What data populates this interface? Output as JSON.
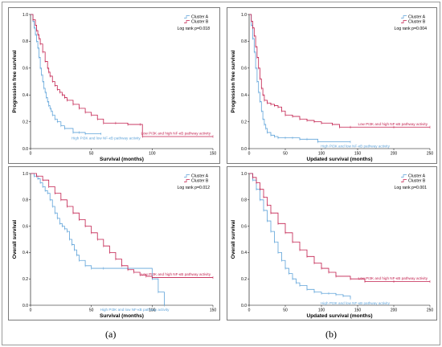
{
  "figure": {
    "label_a": "(a)",
    "label_b": "(b)"
  },
  "colors": {
    "cluster_a": "#5fa3d9",
    "cluster_b": "#c21f4d",
    "axis": "#000000",
    "panel_border": "#7a7a7a"
  },
  "chart_data": [
    {
      "type": "line",
      "panel": "top-left",
      "xlabel": "Survival (months)",
      "ylabel": "Progression free survival",
      "xlim": [
        0,
        150
      ],
      "ylim": [
        0,
        1
      ],
      "xticks": [
        "0",
        "50",
        "100",
        "150"
      ],
      "yticks": [
        "0.0",
        "0.2",
        "0.4",
        "0.6",
        "0.8",
        "1.0"
      ],
      "legend": [
        "Cluster A",
        "Cluster B"
      ],
      "legend_position": "top-right",
      "stat": "Log rank p=0.018",
      "annotations": {
        "cluster_b": "Low PI3K and high NF-κB pathway activity",
        "cluster_a": "High PI3K and low NF-κB pathway activity"
      },
      "series": [
        {
          "name": "Cluster A",
          "x": [
            0,
            2,
            3,
            4,
            5,
            6,
            7,
            8,
            9,
            10,
            11,
            12,
            13,
            14,
            15,
            16,
            17,
            18,
            20,
            22,
            25,
            28,
            35,
            40,
            45,
            58
          ],
          "y": [
            1.0,
            0.95,
            0.9,
            0.85,
            0.8,
            0.75,
            0.68,
            0.6,
            0.55,
            0.5,
            0.45,
            0.42,
            0.38,
            0.35,
            0.32,
            0.3,
            0.28,
            0.25,
            0.22,
            0.2,
            0.17,
            0.15,
            0.12,
            0.12,
            0.11,
            0.11
          ]
        },
        {
          "name": "Cluster B",
          "x": [
            0,
            2,
            4,
            5,
            6,
            7,
            8,
            10,
            12,
            14,
            15,
            16,
            18,
            20,
            22,
            24,
            26,
            28,
            30,
            35,
            40,
            45,
            50,
            55,
            60,
            70,
            80,
            90,
            92,
            150
          ],
          "y": [
            1.0,
            0.96,
            0.92,
            0.88,
            0.85,
            0.82,
            0.78,
            0.72,
            0.65,
            0.6,
            0.57,
            0.54,
            0.5,
            0.47,
            0.44,
            0.42,
            0.4,
            0.38,
            0.36,
            0.33,
            0.3,
            0.27,
            0.25,
            0.22,
            0.19,
            0.19,
            0.18,
            0.18,
            0.09,
            0.09
          ]
        }
      ]
    },
    {
      "type": "line",
      "panel": "top-right",
      "xlabel": "Updated survival (months)",
      "ylabel": "Progression free survival",
      "xlim": [
        0,
        250
      ],
      "ylim": [
        0,
        1
      ],
      "xticks": [
        "0",
        "50",
        "100",
        "150",
        "200",
        "250"
      ],
      "yticks": [
        "0.0",
        "0.2",
        "0.4",
        "0.6",
        "0.8",
        "1.0"
      ],
      "legend": [
        "Cluster A",
        "Cluster B"
      ],
      "legend_position": "top-right",
      "stat": "Log rank p=0.004",
      "annotations": {
        "cluster_b": "Low PI3K and high NF-κB pathway activity",
        "cluster_a": "High PI3K and low NF-κB pathway activity"
      },
      "series": [
        {
          "name": "Cluster A",
          "x": [
            0,
            3,
            5,
            7,
            9,
            11,
            13,
            15,
            17,
            19,
            21,
            23,
            25,
            30,
            35,
            40,
            50,
            60,
            70,
            80,
            95,
            140
          ],
          "y": [
            1.0,
            0.92,
            0.82,
            0.72,
            0.6,
            0.5,
            0.42,
            0.35,
            0.28,
            0.22,
            0.18,
            0.15,
            0.12,
            0.1,
            0.09,
            0.08,
            0.08,
            0.08,
            0.07,
            0.07,
            0.05,
            0.05
          ]
        },
        {
          "name": "Cluster B",
          "x": [
            0,
            3,
            5,
            7,
            9,
            11,
            13,
            15,
            17,
            19,
            21,
            25,
            30,
            35,
            40,
            45,
            50,
            60,
            70,
            80,
            90,
            100,
            115,
            125,
            140,
            200,
            250
          ],
          "y": [
            1.0,
            0.95,
            0.9,
            0.84,
            0.76,
            0.68,
            0.6,
            0.52,
            0.45,
            0.4,
            0.36,
            0.34,
            0.33,
            0.32,
            0.31,
            0.28,
            0.25,
            0.24,
            0.22,
            0.21,
            0.2,
            0.19,
            0.18,
            0.16,
            0.16,
            0.16,
            0.16
          ]
        }
      ]
    },
    {
      "type": "line",
      "panel": "bottom-left",
      "xlabel": "Survival (months)",
      "ylabel": "Overall survival",
      "xlim": [
        0,
        150
      ],
      "ylim": [
        0,
        1
      ],
      "xticks": [
        "0",
        "50",
        "100",
        "150"
      ],
      "yticks": [
        "0.0",
        "0.2",
        "0.4",
        "0.6",
        "0.8",
        "1.0"
      ],
      "legend": [
        "Cluster A",
        "Cluster B"
      ],
      "legend_position": "top-right",
      "stat": "Log rank p=0.012",
      "annotations": {
        "cluster_b": "Low PI3K and high NF-κB pathway activity",
        "cluster_a": "High PI3K and low NF-κB pathway activity"
      },
      "series": [
        {
          "name": "Cluster A",
          "x": [
            0,
            3,
            6,
            8,
            10,
            12,
            14,
            16,
            18,
            20,
            22,
            24,
            26,
            28,
            30,
            32,
            34,
            36,
            38,
            40,
            45,
            50,
            60,
            100,
            105,
            110
          ],
          "y": [
            1.0,
            0.98,
            0.96,
            0.93,
            0.9,
            0.87,
            0.85,
            0.8,
            0.75,
            0.7,
            0.66,
            0.62,
            0.6,
            0.58,
            0.56,
            0.5,
            0.46,
            0.42,
            0.38,
            0.34,
            0.3,
            0.28,
            0.28,
            0.2,
            0.1,
            0.0
          ]
        },
        {
          "name": "Cluster B",
          "x": [
            0,
            5,
            10,
            15,
            20,
            25,
            30,
            35,
            40,
            45,
            50,
            55,
            60,
            65,
            70,
            75,
            80,
            85,
            90,
            95,
            100,
            150
          ],
          "y": [
            1.0,
            0.98,
            0.95,
            0.9,
            0.85,
            0.8,
            0.75,
            0.7,
            0.65,
            0.6,
            0.55,
            0.5,
            0.45,
            0.4,
            0.35,
            0.3,
            0.27,
            0.25,
            0.23,
            0.22,
            0.21,
            0.21
          ]
        }
      ]
    },
    {
      "type": "line",
      "panel": "bottom-right",
      "xlabel": "Updated survival (months)",
      "ylabel": "Overall survival",
      "xlim": [
        0,
        250
      ],
      "ylim": [
        0,
        1
      ],
      "xticks": [
        "0",
        "50",
        "100",
        "150",
        "200",
        "250"
      ],
      "yticks": [
        "0.0",
        "0.2",
        "0.4",
        "0.6",
        "0.8",
        "1.0"
      ],
      "legend": [
        "Cluster A",
        "Cluster B"
      ],
      "legend_position": "top-right",
      "stat": "Log rank p=0.001",
      "annotations": {
        "cluster_b": "Low PI3K and high NF-κB pathway activity",
        "cluster_a": "High PI3K and low NF-κB pathway activity"
      },
      "series": [
        {
          "name": "Cluster A",
          "x": [
            0,
            5,
            10,
            15,
            20,
            25,
            30,
            35,
            40,
            45,
            50,
            55,
            60,
            65,
            70,
            80,
            90,
            100,
            110,
            120,
            130,
            140
          ],
          "y": [
            1.0,
            0.95,
            0.88,
            0.8,
            0.72,
            0.64,
            0.56,
            0.48,
            0.4,
            0.34,
            0.28,
            0.24,
            0.2,
            0.17,
            0.15,
            0.12,
            0.1,
            0.09,
            0.09,
            0.08,
            0.07,
            0.05
          ]
        },
        {
          "name": "Cluster B",
          "x": [
            0,
            5,
            10,
            15,
            20,
            25,
            30,
            40,
            50,
            60,
            70,
            80,
            90,
            100,
            110,
            120,
            140,
            160,
            200,
            250
          ],
          "y": [
            1.0,
            0.97,
            0.93,
            0.88,
            0.82,
            0.76,
            0.7,
            0.62,
            0.55,
            0.48,
            0.42,
            0.37,
            0.32,
            0.28,
            0.25,
            0.22,
            0.2,
            0.18,
            0.18,
            0.18
          ]
        }
      ]
    }
  ]
}
